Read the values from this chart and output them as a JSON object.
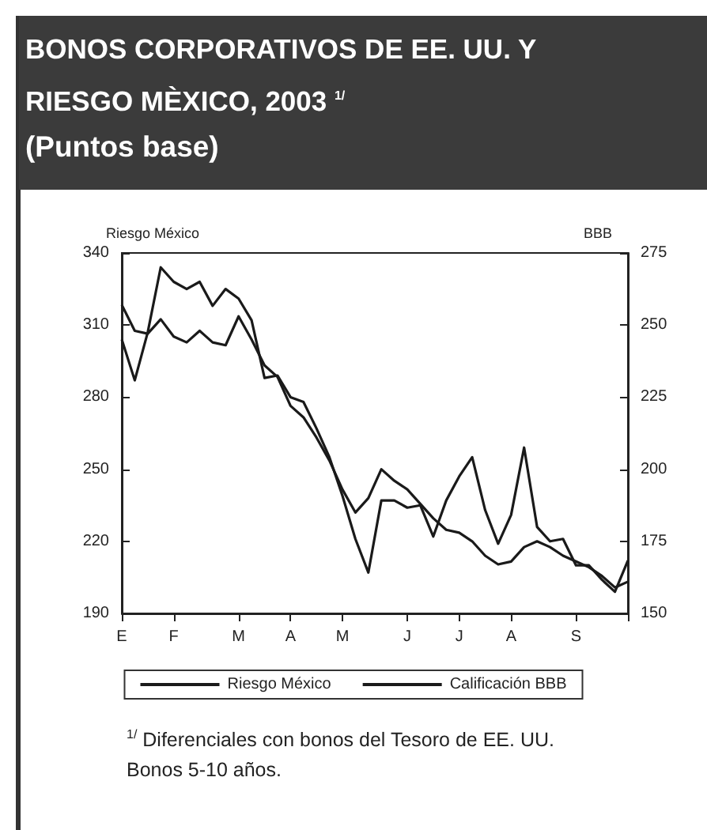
{
  "chart_data": {
    "type": "line",
    "title": "BONOS CORPORATIVOS DE EE. UU. Y RIESGO MÈXICO, 2003 $^{1/}$",
    "subtitle": "(Puntos base)",
    "ylabel": "Riesgo México",
    "y2label": "BBB",
    "categories": [
      "E",
      null,
      null,
      null,
      "F",
      null,
      null,
      null,
      null,
      "M",
      null,
      null,
      null,
      "A",
      null,
      null,
      null,
      "M",
      null,
      null,
      null,
      null,
      "J",
      null,
      null,
      null,
      "J",
      null,
      null,
      null,
      "A",
      null,
      null,
      null,
      null,
      "S",
      null,
      null,
      null,
      null
    ],
    "ylim": [
      190,
      340
    ],
    "yticks": [
      190,
      220,
      250,
      280,
      310,
      340
    ],
    "y2lim": [
      150,
      275
    ],
    "y2ticks": [
      150,
      175,
      200,
      225,
      250,
      275
    ],
    "grid": false,
    "legend": "bottom",
    "marker": "none",
    "line_style": "solid",
    "series": [
      {
        "name": "Riesgo México",
        "color": "#1a1a1a",
        "values": [
          304,
          287,
          307,
          334,
          328,
          325,
          328,
          318,
          325,
          321,
          312,
          288,
          289,
          280,
          278,
          267,
          255,
          239,
          221,
          207,
          237,
          237,
          234,
          235,
          222,
          237,
          247,
          255,
          233,
          219,
          231,
          259,
          226,
          220,
          221,
          210,
          210,
          204,
          199,
          212
        ]
      },
      {
        "name": "Calificación BBB",
        "color": "#1a1a1a",
        "axis": "y2",
        "values": [
          257,
          248,
          247,
          252,
          246,
          244,
          248,
          244,
          243,
          253,
          245,
          236,
          232,
          222,
          218,
          211,
          203,
          193,
          185,
          190,
          200,
          196,
          193,
          188,
          183,
          179,
          178,
          175,
          170,
          167,
          168,
          173,
          175,
          173,
          170,
          168,
          166,
          163,
          159,
          161
        ]
      }
    ],
    "annotations": [
      "$^{1/}$ Diferenciales con bonos del Tesoro de EE. UU.",
      "Bonos 5-10 años."
    ]
  }
}
